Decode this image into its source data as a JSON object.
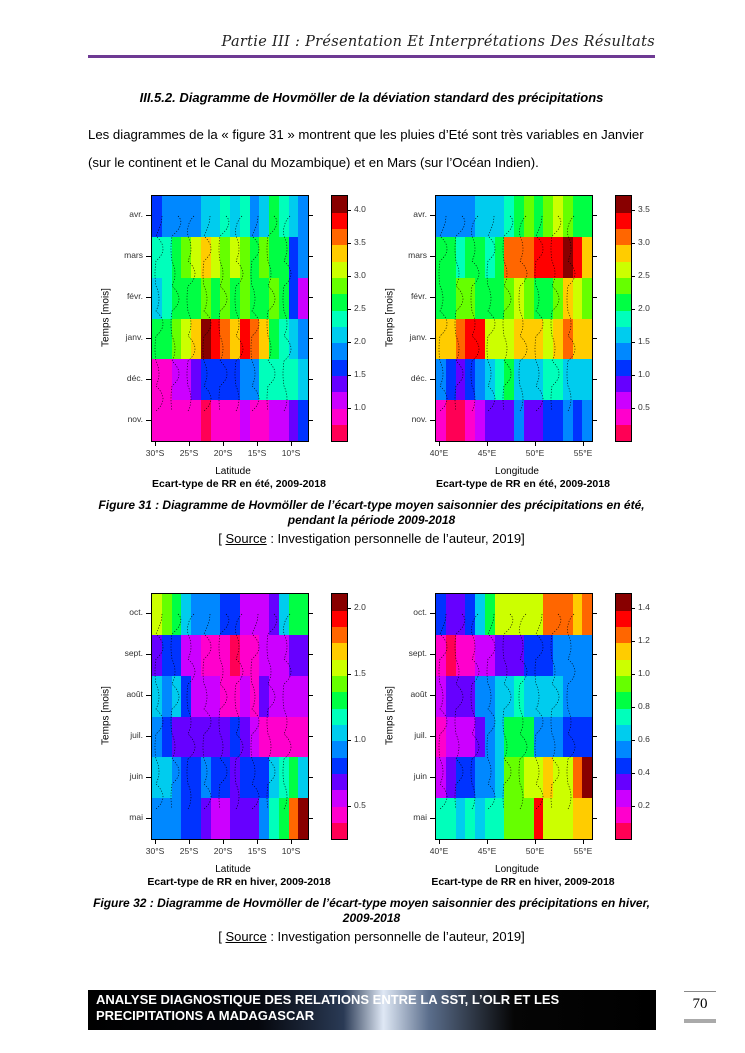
{
  "header": {
    "running_title": "Partie III : Présentation Et Interprétations Des Résultats"
  },
  "section": {
    "title": "III.5.2. Diagramme de Hovmöller de la déviation standard des précipitations"
  },
  "paragraph": {
    "line1": "Les diagrammes de la « figure 31 » montrent que les pluies d’Eté sont très variables en Janvier",
    "line2": "(sur le continent et le Canal du Mozambique) et en Mars (sur l’Océan Indien)."
  },
  "palette": [
    "#ff0055",
    "#ff00cc",
    "#cc00ff",
    "#6600ff",
    "#0033ff",
    "#0088ff",
    "#00ccee",
    "#00ffbb",
    "#00ff44",
    "#66ff00",
    "#ccff00",
    "#ffcc00",
    "#ff6600",
    "#ff0000",
    "#880000"
  ],
  "figures": [
    {
      "caption_line1": "Figure 31 : Diagramme de Hovmöller de l’écart-type moyen saisonnier des précipitations en été,",
      "caption_line2": "pendant la période 2009-2018",
      "source_open": "[ ",
      "source_word": "Source",
      "source_rest": " : Investigation personnelle de l’auteur, 2019]",
      "panels": [
        {
          "ylabel": "Temps [mois]",
          "xlabel": "Latitude",
          "title": "Ecart-type de RR en été, 2009-2018",
          "months": [
            "avr.",
            "mars",
            "févr.",
            "janv.",
            "déc.",
            "nov."
          ],
          "xticks": [
            "30°S",
            "25°S",
            "20°S",
            "15°S",
            "10°S"
          ],
          "colorbar_ticks": [
            "4.0",
            "3.5",
            "3.0",
            "2.5",
            "2.0",
            "1.5",
            "1.0"
          ],
          "grid": [
            [
              4,
              5,
              5,
              5,
              5,
              6,
              6,
              7,
              6,
              7,
              5,
              6,
              8,
              7,
              6,
              5
            ],
            [
              7,
              7,
              8,
              9,
              10,
              11,
              10,
              9,
              10,
              9,
              8,
              9,
              8,
              8,
              4,
              5
            ],
            [
              6,
              7,
              8,
              8,
              8,
              9,
              8,
              9,
              8,
              9,
              8,
              8,
              9,
              8,
              4,
              2
            ],
            [
              8,
              8,
              9,
              10,
              11,
              14,
              13,
              12,
              11,
              13,
              12,
              11,
              8,
              7,
              6,
              5
            ],
            [
              1,
              1,
              2,
              2,
              3,
              4,
              4,
              4,
              4,
              5,
              5,
              7,
              7,
              7,
              7,
              6
            ],
            [
              1,
              1,
              1,
              1,
              1,
              0,
              1,
              1,
              1,
              2,
              1,
              1,
              2,
              2,
              3,
              4
            ]
          ]
        },
        {
          "ylabel": "Temps [mois]",
          "xlabel": "Longitude",
          "title": "Ecart-type de RR en été, 2009-2018",
          "months": [
            "avr.",
            "mars",
            "févr.",
            "janv.",
            "déc.",
            "nov."
          ],
          "xticks": [
            "40°E",
            "45°E",
            "50°E",
            "55°E"
          ],
          "colorbar_ticks": [
            "3.5",
            "3.0",
            "2.5",
            "2.0",
            "1.5",
            "1.0",
            "0.5"
          ],
          "grid": [
            [
              5,
              5,
              5,
              5,
              6,
              6,
              6,
              7,
              8,
              9,
              8,
              9,
              10,
              9,
              8,
              8
            ],
            [
              8,
              8,
              7,
              8,
              8,
              7,
              8,
              12,
              12,
              12,
              13,
              13,
              13,
              14,
              13,
              11
            ],
            [
              8,
              8,
              9,
              9,
              8,
              8,
              8,
              9,
              10,
              9,
              8,
              8,
              9,
              11,
              10,
              9
            ],
            [
              11,
              11,
              12,
              13,
              13,
              10,
              10,
              10,
              11,
              11,
              11,
              10,
              11,
              12,
              11,
              11
            ],
            [
              5,
              4,
              3,
              4,
              5,
              6,
              7,
              8,
              6,
              6,
              6,
              7,
              7,
              6,
              6,
              6
            ],
            [
              1,
              0,
              0,
              1,
              2,
              3,
              3,
              3,
              5,
              3,
              3,
              4,
              4,
              5,
              4,
              5
            ]
          ]
        }
      ]
    },
    {
      "caption_line1": "Figure 32 : Diagramme de Hovmöller de l’écart-type moyen saisonnier des précipitations en hiver,",
      "caption_line2": "2009-2018",
      "source_open": "[ ",
      "source_word": "Source",
      "source_rest": " : Investigation personnelle de l’auteur, 2019]",
      "panels": [
        {
          "ylabel": "Temps [mois]",
          "xlabel": "Latitude",
          "title": "Ecart-type de RR en hiver, 2009-2018",
          "months": [
            "oct.",
            "sept.",
            "août",
            "juil.",
            "juin",
            "mai"
          ],
          "xticks": [
            "30°S",
            "25°S",
            "20°S",
            "15°S",
            "10°S"
          ],
          "colorbar_ticks": [
            "2.0",
            "1.5",
            "1.0",
            "0.5"
          ],
          "grid": [
            [
              10,
              9,
              8,
              6,
              5,
              5,
              5,
              4,
              4,
              2,
              2,
              2,
              3,
              6,
              8,
              8
            ],
            [
              3,
              4,
              4,
              2,
              2,
              1,
              1,
              1,
              0,
              1,
              1,
              2,
              2,
              2,
              3,
              3
            ],
            [
              6,
              5,
              6,
              4,
              2,
              2,
              2,
              1,
              1,
              2,
              1,
              3,
              2,
              2,
              2,
              2
            ],
            [
              5,
              4,
              3,
              3,
              3,
              3,
              3,
              3,
              4,
              3,
              2,
              1,
              1,
              1,
              1,
              1
            ],
            [
              6,
              6,
              5,
              4,
              4,
              5,
              4,
              4,
              3,
              4,
              4,
              4,
              6,
              7,
              8,
              6
            ],
            [
              5,
              5,
              5,
              4,
              4,
              3,
              2,
              2,
              3,
              3,
              3,
              5,
              7,
              8,
              12,
              14
            ]
          ]
        },
        {
          "ylabel": "Temps [mois]",
          "xlabel": "Longitude",
          "title": "Ecart-type de RR en hiver, 2009-2018",
          "months": [
            "oct.",
            "sept.",
            "août",
            "juil.",
            "juin",
            "mai"
          ],
          "xticks": [
            "40°E",
            "45°E",
            "50°E",
            "55°E"
          ],
          "colorbar_ticks": [
            "1.4",
            "1.2",
            "1.0",
            "0.8",
            "0.6",
            "0.4",
            "0.2"
          ],
          "grid": [
            [
              4,
              3,
              3,
              4,
              6,
              8,
              10,
              10,
              10,
              10,
              10,
              12,
              12,
              12,
              11,
              12
            ],
            [
              1,
              0,
              1,
              1,
              2,
              2,
              3,
              3,
              3,
              4,
              4,
              4,
              5,
              5,
              5,
              5
            ],
            [
              2,
              3,
              3,
              3,
              5,
              5,
              6,
              6,
              7,
              6,
              6,
              6,
              6,
              5,
              5,
              5
            ],
            [
              1,
              2,
              2,
              2,
              3,
              5,
              6,
              8,
              8,
              8,
              5,
              5,
              5,
              4,
              4,
              4
            ],
            [
              2,
              3,
              4,
              4,
              5,
              5,
              6,
              9,
              9,
              10,
              10,
              11,
              10,
              10,
              12,
              14
            ],
            [
              7,
              7,
              6,
              7,
              6,
              7,
              7,
              9,
              9,
              9,
              13,
              10,
              10,
              10,
              11,
              11
            ]
          ]
        }
      ]
    }
  ],
  "footer": {
    "line1": "ANALYSE DIAGNOSTIQUE DES RELATIONS ENTRE LA SST, L’OLR ET LES",
    "line2": "PRECIPITATIONS A MADAGASCAR",
    "page_number": "70"
  }
}
